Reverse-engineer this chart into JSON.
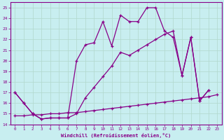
{
  "xlabel": "Windchill (Refroidissement éolien,°C)",
  "background_color": "#c8eef0",
  "grid_color": "#b0d8cc",
  "line_color": "#880088",
  "xlim_min": -0.5,
  "xlim_max": 23.5,
  "ylim_min": 14,
  "ylim_max": 25.5,
  "xticks": [
    0,
    1,
    2,
    3,
    4,
    5,
    6,
    7,
    8,
    9,
    10,
    11,
    12,
    13,
    14,
    15,
    16,
    17,
    18,
    19,
    20,
    21,
    22,
    23
  ],
  "yticks": [
    14,
    15,
    16,
    17,
    18,
    19,
    20,
    21,
    22,
    23,
    24,
    25
  ],
  "line1_x": [
    0,
    1,
    2,
    3,
    4,
    5,
    6,
    7,
    8,
    9,
    10,
    11,
    12,
    13,
    14,
    15,
    16,
    17,
    18,
    19,
    20,
    21,
    22
  ],
  "line1_y": [
    17,
    16,
    15,
    14.5,
    14.6,
    14.6,
    14.6,
    20.0,
    21.5,
    21.7,
    23.7,
    21.4,
    24.3,
    23.7,
    23.7,
    25.0,
    25.0,
    22.8,
    22.2,
    18.6,
    22.2,
    16.2,
    17.2
  ],
  "line2_x": [
    0,
    1,
    2,
    3,
    4,
    5,
    6,
    7,
    8,
    9,
    10,
    11,
    12,
    13,
    14,
    15,
    16,
    17,
    18,
    19,
    20,
    21,
    22
  ],
  "line2_y": [
    17,
    16,
    15,
    14.5,
    14.6,
    14.6,
    14.6,
    15.0,
    16.5,
    17.5,
    18.5,
    19.5,
    20.8,
    20.5,
    21.0,
    21.5,
    22.0,
    22.5,
    22.8,
    18.6,
    22.2,
    16.2,
    17.2
  ],
  "line3_x": [
    0,
    1,
    2,
    3,
    4,
    5,
    6,
    7,
    8,
    9,
    10,
    11,
    12,
    13,
    14,
    15,
    16,
    17,
    18,
    19,
    20,
    21,
    22,
    23
  ],
  "line3_y": [
    14.8,
    14.8,
    14.9,
    14.9,
    15.0,
    15.0,
    15.1,
    15.1,
    15.2,
    15.3,
    15.4,
    15.5,
    15.6,
    15.7,
    15.8,
    15.9,
    16.0,
    16.1,
    16.2,
    16.3,
    16.4,
    16.5,
    16.6,
    16.8
  ]
}
